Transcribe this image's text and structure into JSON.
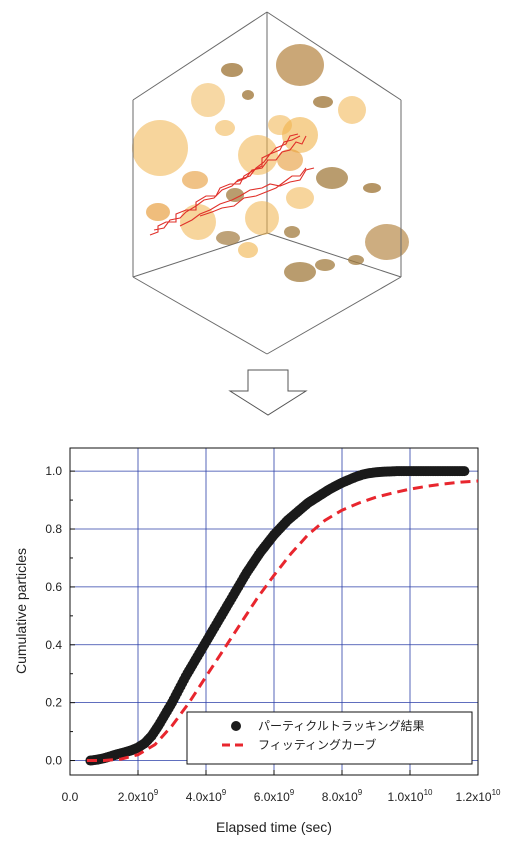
{
  "colors": {
    "grid": "#2b3fa8",
    "points": "#1a1a1a",
    "fit": "#e8262e",
    "sphere_light": "#f0b24a",
    "sphere_dark": "#a27b3e",
    "path": "#e0302a",
    "cube_edge": "#6a6a6a"
  },
  "arrow_icon": "down-arrow-icon",
  "chart_data": {
    "type": "scatter",
    "xlabel": "Elapsed time (sec)",
    "ylabel": "Cumulative particles",
    "xlim": [
      0,
      12000000000
    ],
    "ylim": [
      -0.05,
      1.08
    ],
    "x_ticks": [
      {
        "value": 0,
        "mant": "0.0",
        "exp": ""
      },
      {
        "value": 2000000000,
        "mant": "2.0x10",
        "exp": "9"
      },
      {
        "value": 4000000000,
        "mant": "4.0x10",
        "exp": "9"
      },
      {
        "value": 6000000000,
        "mant": "6.0x10",
        "exp": "9"
      },
      {
        "value": 8000000000,
        "mant": "8.0x10",
        "exp": "9"
      },
      {
        "value": 10000000000,
        "mant": "1.0x10",
        "exp": "10"
      },
      {
        "value": 12000000000,
        "mant": "1.2x10",
        "exp": "10"
      }
    ],
    "y_ticks": [
      "0.0",
      "0.2",
      "0.4",
      "0.6",
      "0.8",
      "1.0"
    ],
    "grid": true,
    "legend_position": "bottom-right",
    "series": [
      {
        "name": "パーティクルトラッキング結果",
        "style": "markers",
        "x": [
          600000000,
          800000000,
          1000000000,
          1200000000,
          1400000000,
          1600000000,
          1800000000,
          2000000000,
          2200000000,
          2400000000,
          2600000000,
          2800000000,
          3000000000,
          3200000000,
          3400000000,
          3600000000,
          3800000000,
          4000000000,
          4200000000,
          4400000000,
          4600000000,
          4800000000,
          5000000000,
          5200000000,
          5400000000,
          5600000000,
          5800000000,
          6000000000,
          6200000000,
          6400000000,
          6600000000,
          6800000000,
          7000000000,
          7200000000,
          7400000000,
          7600000000,
          7800000000,
          8000000000,
          8200000000,
          8400000000,
          8600000000,
          8800000000,
          9000000000,
          9200000000,
          9400000000,
          9600000000,
          9800000000,
          10000000000,
          10200000000,
          10400000000,
          10600000000,
          10800000000,
          11000000000,
          11200000000,
          11400000000,
          11600000000
        ],
        "y": [
          0.0,
          0.003,
          0.008,
          0.015,
          0.022,
          0.028,
          0.035,
          0.045,
          0.06,
          0.085,
          0.12,
          0.16,
          0.2,
          0.245,
          0.29,
          0.33,
          0.37,
          0.41,
          0.45,
          0.49,
          0.53,
          0.57,
          0.61,
          0.65,
          0.685,
          0.72,
          0.75,
          0.78,
          0.805,
          0.83,
          0.85,
          0.87,
          0.89,
          0.905,
          0.92,
          0.935,
          0.948,
          0.96,
          0.97,
          0.98,
          0.988,
          0.993,
          0.996,
          0.998,
          0.999,
          1.0,
          1.0,
          1.0,
          1.0,
          1.0,
          1.0,
          1.0,
          1.0,
          1.0,
          1.0,
          1.0
        ]
      },
      {
        "name": "フィッティングカーブ",
        "style": "dashed",
        "x": [
          500000000,
          1000000000,
          1500000000,
          2000000000,
          2500000000,
          3000000000,
          3500000000,
          4000000000,
          4500000000,
          5000000000,
          5500000000,
          6000000000,
          6500000000,
          7000000000,
          7500000000,
          8000000000,
          8500000000,
          9000000000,
          9500000000,
          10000000000,
          10500000000,
          11000000000,
          11500000000,
          12000000000
        ],
        "y": [
          0.0,
          0.0,
          0.005,
          0.02,
          0.055,
          0.12,
          0.2,
          0.29,
          0.38,
          0.47,
          0.56,
          0.64,
          0.715,
          0.78,
          0.83,
          0.865,
          0.89,
          0.91,
          0.925,
          0.938,
          0.948,
          0.956,
          0.962,
          0.966
        ]
      }
    ]
  }
}
